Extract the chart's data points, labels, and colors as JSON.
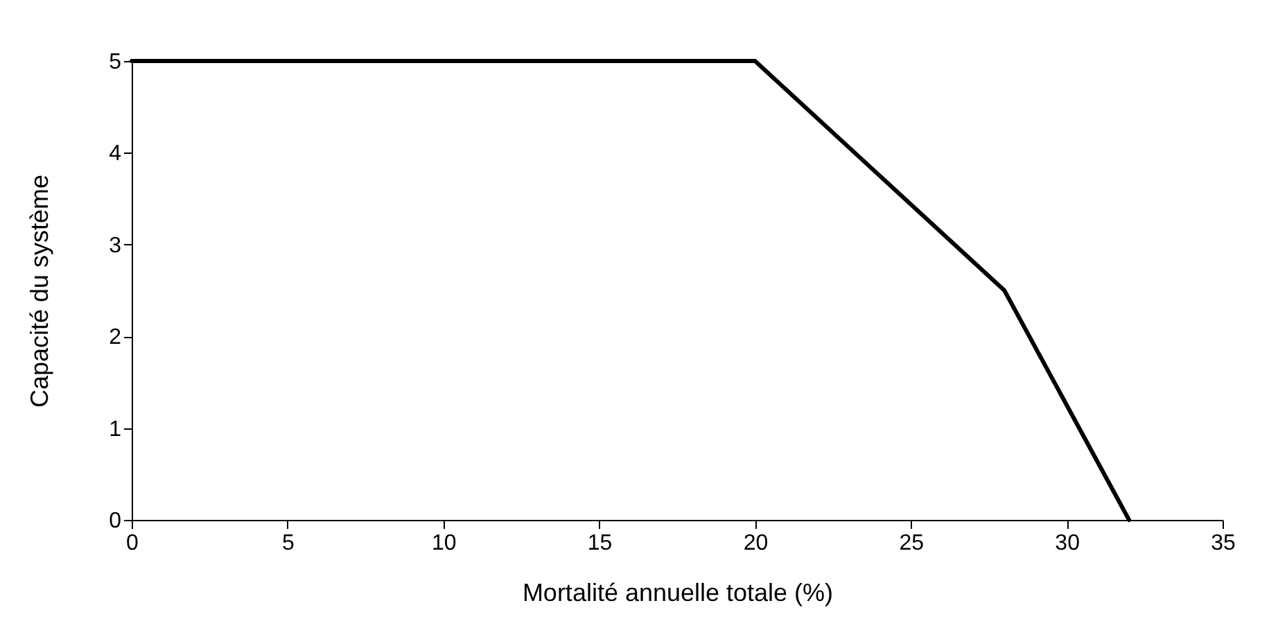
{
  "chart_data": {
    "type": "line",
    "xlabel": "Mortalité annuelle totale (%)",
    "ylabel": "Capacité du système",
    "x": [
      0,
      20,
      28,
      32
    ],
    "series": [
      {
        "color": "#000000",
        "values": [
          5,
          5,
          2.5,
          0
        ]
      }
    ],
    "xlim": [
      0,
      35
    ],
    "xticks": [
      0,
      5,
      10,
      15,
      20,
      25,
      30,
      35
    ],
    "ylim": [
      0,
      5
    ],
    "yticks": [
      0,
      1,
      2,
      3,
      4,
      5
    ],
    "grid": false,
    "legend": false,
    "marker": "none",
    "line_style": "solid"
  }
}
